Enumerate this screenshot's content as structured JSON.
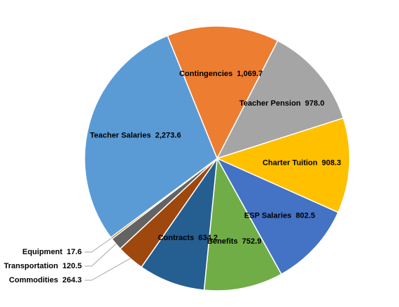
{
  "chart_data": {
    "type": "pie",
    "categories": [
      "Contingencies",
      "Teacher Pension",
      "Charter Tuition",
      "ESP Salaries",
      "Benefits",
      "Contracts",
      "Commodities",
      "Transportation",
      "Equipment",
      "Teacher Salaries"
    ],
    "values": [
      1069.7,
      978.0,
      908.3,
      802.5,
      752.9,
      634.2,
      264.3,
      120.5,
      17.6,
      2273.6
    ],
    "value_labels": [
      "1,069.7",
      "978.0",
      "908.3",
      "802.5",
      "752.9",
      "634.2",
      "264.3",
      "120.5",
      "17.6",
      "2,273.6"
    ],
    "colors": [
      "#ED7D31",
      "#A5A5A5",
      "#FFC000",
      "#4472C4",
      "#70AD47",
      "#255E91",
      "#9E480E",
      "#636363",
      "#997300",
      "#5B9BD5"
    ]
  }
}
